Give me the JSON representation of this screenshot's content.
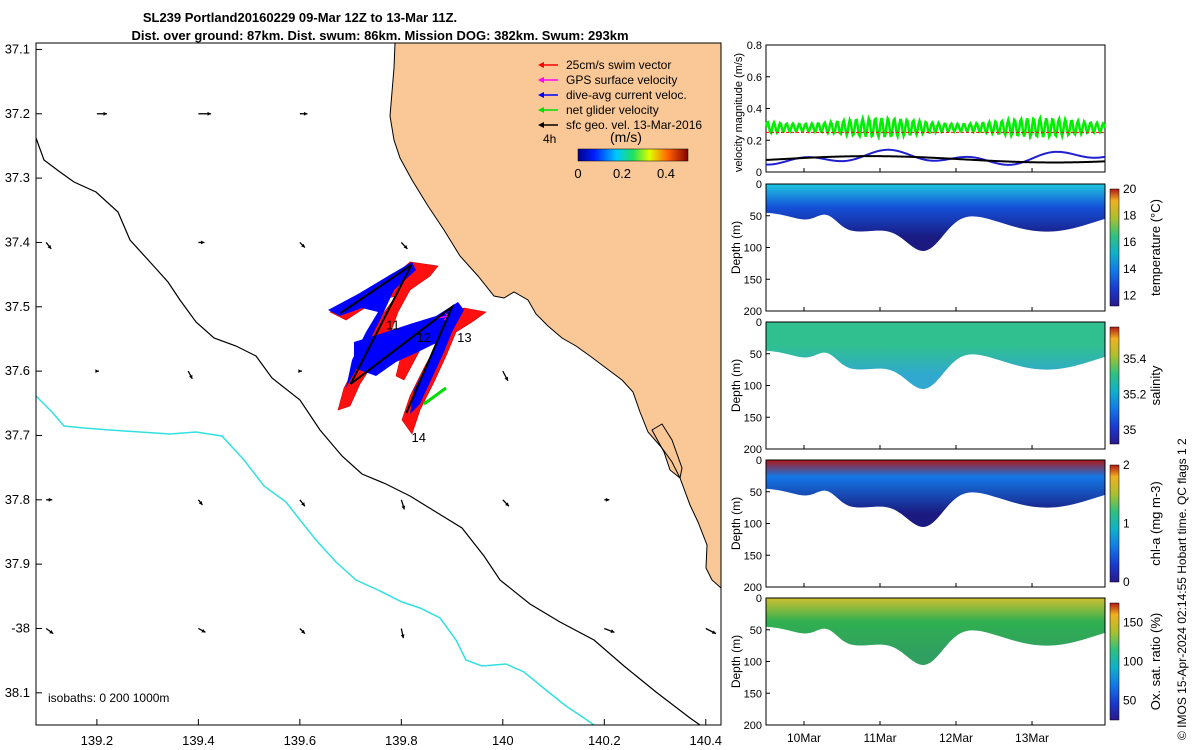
{
  "title": {
    "line1": "SL239 Portland20160229 09-Mar 12Z to 13-Mar 11Z.",
    "line2": "Dist. over ground: 87km. Dist. swum: 86km. Mission DOG: 382km. Swum: 293km"
  },
  "copyright": "© IMOS 15-Apr-2024 02:14:55 Hobart time. QC flags 1  2",
  "chart_data": [
    {
      "type": "map",
      "name": "glider-track-map",
      "lon_ticks": [
        "139.2",
        "139.4",
        "139.6",
        "139.8",
        "140",
        "140.2",
        "140.4"
      ],
      "lon_values": [
        139.2,
        139.4,
        139.6,
        139.8,
        140.0,
        140.2,
        140.4
      ],
      "lat_ticks": [
        "37.1",
        "37.2",
        "37.3",
        "37.4",
        "37.5",
        "37.6",
        "37.7",
        "37.8",
        "37.9",
        "-38",
        "38.1"
      ],
      "lat_values": [
        -37.1,
        -37.2,
        -37.3,
        -37.4,
        -37.5,
        -37.6,
        -37.7,
        -37.8,
        -37.9,
        -38.0,
        -38.1
      ],
      "xlim": [
        139.08,
        140.43
      ],
      "ylim": [
        -38.15,
        -37.09
      ],
      "legend": {
        "placement": "top-right",
        "entries": [
          {
            "label": "25cm/s swim vector",
            "color": "#ff0000"
          },
          {
            "label": "GPS surface velocity",
            "color": "#ff00ff"
          },
          {
            "label": "dive-avg current veloc.",
            "color": "#0000ff"
          },
          {
            "label": "net glider velocity",
            "color": "#00e000"
          },
          {
            "label": "sfc geo. vel. 13-Mar-2016",
            "color": "#000000"
          }
        ]
      },
      "time_label": "4h",
      "colorbar": {
        "label": "(m/s)",
        "ticks": [
          "0",
          "0.2",
          "0.4"
        ],
        "tick_values": [
          0,
          0.2,
          0.4
        ],
        "range": [
          0,
          0.5
        ]
      },
      "day_labels": [
        {
          "text": "11",
          "lon": 139.77,
          "lat": -37.535
        },
        {
          "text": "12",
          "lon": 139.83,
          "lat": -37.555
        },
        {
          "text": "13",
          "lon": 139.91,
          "lat": -37.555
        },
        {
          "text": "14",
          "lon": 139.82,
          "lat": -37.71
        }
      ],
      "isobath_note": "isobaths: 0   200  1000m",
      "land_color": "#f9c896",
      "isobath_colors": {
        "200m": "#000000",
        "1000m": "#33e0e0"
      },
      "track": [
        [
          139.68,
          -37.51
        ],
        [
          139.82,
          -37.435
        ],
        [
          139.7,
          -37.62
        ],
        [
          139.9,
          -37.5
        ],
        [
          139.81,
          -37.665
        ]
      ],
      "geo_vectors": [
        [
          139.2,
          -37.2,
          0.02,
          0
        ],
        [
          139.4,
          -37.2,
          0.025,
          0
        ],
        [
          139.6,
          -37.2,
          0.015,
          0
        ],
        [
          139.1,
          -37.4,
          0.01,
          -0.01
        ],
        [
          139.4,
          -37.4,
          0.012,
          0
        ],
        [
          139.6,
          -37.4,
          0.01,
          -0.008
        ],
        [
          139.8,
          -37.4,
          0.012,
          -0.01
        ],
        [
          139.2,
          -37.6,
          0.004,
          0
        ],
        [
          139.38,
          -37.6,
          0.008,
          -0.012
        ],
        [
          139.6,
          -37.6,
          0.004,
          0
        ],
        [
          140,
          -37.6,
          0.01,
          -0.015
        ],
        [
          139.1,
          -37.8,
          0.012,
          0
        ],
        [
          139.4,
          -37.8,
          0.008,
          -0.008
        ],
        [
          139.6,
          -37.8,
          0.01,
          -0.01
        ],
        [
          139.8,
          -37.8,
          0.006,
          -0.015
        ],
        [
          140,
          -37.8,
          0.012,
          -0.01
        ],
        [
          140.2,
          -37.8,
          0.01,
          0
        ],
        [
          139.1,
          -38.0,
          0.014,
          -0.008
        ],
        [
          139.4,
          -38.0,
          0.014,
          -0.006
        ],
        [
          139.6,
          -38.0,
          0.01,
          -0.008
        ],
        [
          139.8,
          -38.0,
          0.004,
          -0.015
        ],
        [
          140.2,
          -38.0,
          0.02,
          -0.006
        ],
        [
          140.4,
          -38.0,
          0.02,
          -0.008
        ]
      ]
    },
    {
      "type": "line",
      "name": "velocity-magnitude-plot",
      "ylabel": "velocity magnitude (m/s)",
      "yticks": [
        "0",
        "0.2",
        "0.4",
        "0.6",
        "0.8"
      ],
      "ytick_values": [
        0,
        0.2,
        0.4,
        0.6,
        0.8
      ],
      "ylim": [
        0,
        0.8
      ],
      "xlim": [
        9.5,
        13.96
      ],
      "series": [
        {
          "color": "#00ee00",
          "style": "oscillating",
          "mean": 0.28,
          "amp": 0.06
        },
        {
          "color": "#ff0000",
          "style": "dashed",
          "value": 0.25
        },
        {
          "color": "#2020d0",
          "style": "wavy",
          "mean": 0.09,
          "amp": 0.05
        },
        {
          "color": "#000000",
          "style": "smooth",
          "mean": 0.08,
          "amp": 0.02
        }
      ]
    },
    {
      "type": "heatmap",
      "name": "temperature-section",
      "ylabel": "Depth (m)",
      "clabel": "temperature (°C)",
      "yticks": [
        "0",
        "50",
        "100",
        "150",
        "200"
      ],
      "ylim": [
        0,
        200
      ],
      "cticks": [
        "12",
        "14",
        "16",
        "18",
        "20"
      ],
      "crange": [
        11.2,
        20
      ],
      "colormap": "parula"
    },
    {
      "type": "heatmap",
      "name": "salinity-section",
      "ylabel": "Depth (m)",
      "clabel": "salinity",
      "yticks": [
        "0",
        "50",
        "100",
        "150",
        "200"
      ],
      "ylim": [
        0,
        200
      ],
      "cticks": [
        "35",
        "35.2",
        "35.4"
      ],
      "crange": [
        34.92,
        35.58
      ],
      "colormap": "parula"
    },
    {
      "type": "heatmap",
      "name": "chlorophyll-section",
      "ylabel": "Depth (m)",
      "clabel": "chl-a (mg m-3)",
      "yticks": [
        "0",
        "50",
        "100",
        "150",
        "200"
      ],
      "ylim": [
        0,
        200
      ],
      "cticks": [
        "0",
        "1",
        "2"
      ],
      "crange": [
        0,
        2
      ],
      "colormap": "parula"
    },
    {
      "type": "heatmap",
      "name": "oxygen-section",
      "ylabel": "Depth (m)",
      "clabel": "Ox. sat. ratio (%)",
      "yticks": [
        "0",
        "50",
        "100",
        "150",
        "200"
      ],
      "ylim": [
        0,
        200
      ],
      "cticks": [
        "50",
        "100",
        "150"
      ],
      "crange": [
        25,
        175
      ],
      "colormap": "parula",
      "xticks": [
        "10Mar",
        "11Mar",
        "12Mar",
        "13Mar"
      ],
      "xtick_values": [
        10,
        11,
        12,
        13
      ]
    }
  ]
}
